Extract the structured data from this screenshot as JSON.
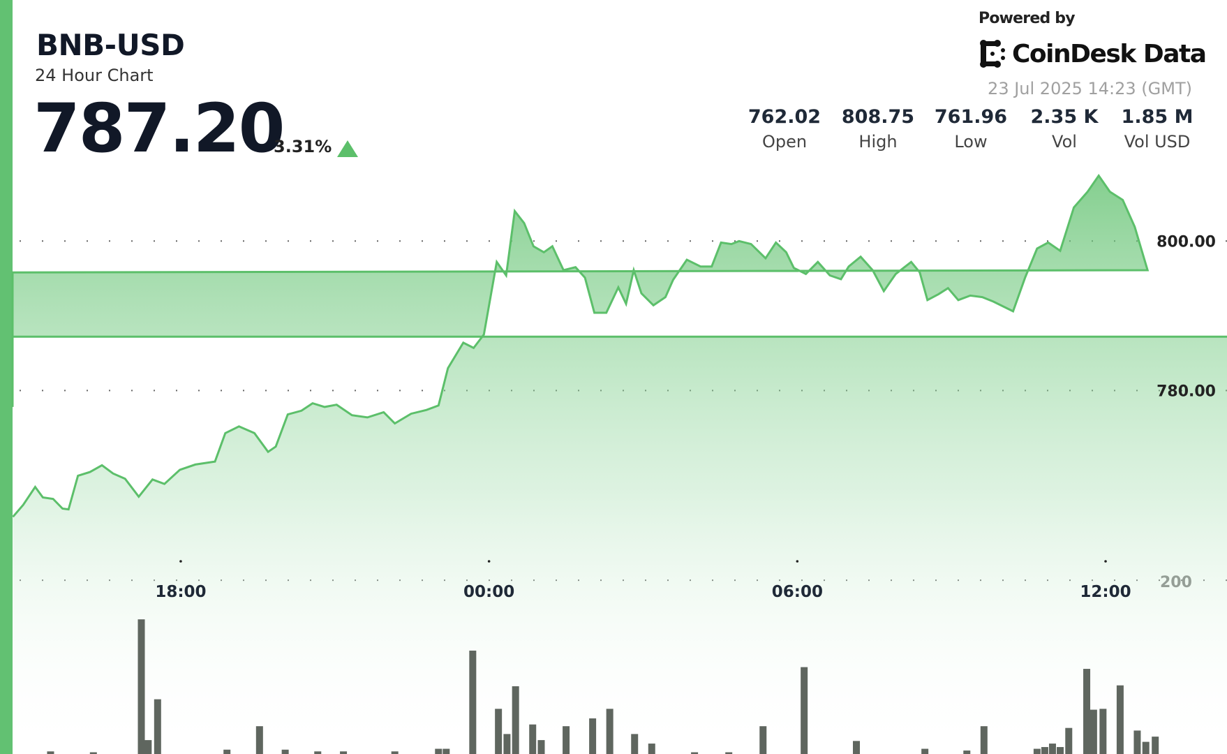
{
  "header": {
    "symbol": "BNB-USD",
    "subtitle": "24 Hour Chart",
    "price": "787.20",
    "change_percent": "3.31%",
    "change_direction": "up",
    "powered_by": "Powered by",
    "brand": "CoinDesk Data",
    "timestamp": "23 Jul 2025 14:23 (GMT)"
  },
  "stats": [
    {
      "value": "762.02",
      "label": "Open"
    },
    {
      "value": "808.75",
      "label": "High"
    },
    {
      "value": "761.96",
      "label": "Low"
    },
    {
      "value": "2.35 K",
      "label": "Vol"
    },
    {
      "value": "1.85 M",
      "label": "Vol USD"
    }
  ],
  "colors": {
    "accent": "#62c172",
    "line": "#5cbf6a",
    "volume_bar": "#5f665f",
    "text": "#111827"
  },
  "chart_data": [
    {
      "type": "area",
      "title": "",
      "y_ticks": [
        "800.00",
        "780.00"
      ],
      "y_tick_values": [
        800,
        780
      ],
      "x_ticks": [
        "18:00",
        "00:00",
        "06:00",
        "12:00"
      ],
      "grid": "dotted horizontal",
      "series": [
        {
          "points": [
            [
              "14:44",
              763.1
            ],
            [
              "14:56",
              764.7
            ],
            [
              "15:10",
              767.1
            ],
            [
              "15:19",
              765.7
            ],
            [
              "15:31",
              765.5
            ],
            [
              "15:42",
              764.2
            ],
            [
              "15:49",
              764.1
            ],
            [
              "16:00",
              768.6
            ],
            [
              "16:14",
              769.1
            ],
            [
              "16:28",
              770.0
            ],
            [
              "16:41",
              768.9
            ],
            [
              "16:55",
              768.2
            ],
            [
              "17:11",
              765.8
            ],
            [
              "17:27",
              768.1
            ],
            [
              "17:41",
              767.5
            ],
            [
              "17:59",
              769.4
            ],
            [
              "18:17",
              770.1
            ],
            [
              "18:40",
              770.5
            ],
            [
              "18:52",
              774.3
            ],
            [
              "19:08",
              775.2
            ],
            [
              "19:26",
              774.3
            ],
            [
              "19:42",
              771.8
            ],
            [
              "19:51",
              772.5
            ],
            [
              "20:05",
              776.8
            ],
            [
              "20:21",
              777.3
            ],
            [
              "20:34",
              778.3
            ],
            [
              "20:48",
              777.8
            ],
            [
              "21:02",
              778.1
            ],
            [
              "21:20",
              776.7
            ],
            [
              "21:38",
              776.4
            ],
            [
              "21:57",
              777.1
            ],
            [
              "22:10",
              775.6
            ],
            [
              "22:29",
              776.9
            ],
            [
              "22:47",
              777.4
            ],
            [
              "23:01",
              778.0
            ],
            [
              "23:12",
              783.0
            ],
            [
              "23:30",
              786.4
            ],
            [
              "23:42",
              785.7
            ],
            [
              "23:54",
              787.5
            ],
            [
              "00:09",
              797.2
            ],
            [
              "00:20",
              795.4
            ],
            [
              "00:30",
              804.0
            ],
            [
              "00:41",
              802.4
            ],
            [
              "00:52",
              799.3
            ],
            [
              "01:04",
              798.5
            ],
            [
              "01:14",
              799.3
            ],
            [
              "01:27",
              796.1
            ],
            [
              "01:41",
              796.5
            ],
            [
              "01:52",
              795.1
            ],
            [
              "02:03",
              790.4
            ],
            [
              "02:17",
              790.4
            ],
            [
              "02:31",
              793.8
            ],
            [
              "02:40",
              791.6
            ],
            [
              "02:49",
              796.1
            ],
            [
              "02:58",
              793.0
            ],
            [
              "03:12",
              791.4
            ],
            [
              "03:26",
              792.5
            ],
            [
              "03:35",
              794.8
            ],
            [
              "03:51",
              797.5
            ],
            [
              "04:07",
              796.6
            ],
            [
              "04:20",
              796.6
            ],
            [
              "04:31",
              799.8
            ],
            [
              "04:43",
              799.6
            ],
            [
              "04:52",
              800.0
            ],
            [
              "05:06",
              799.6
            ],
            [
              "05:23",
              797.7
            ],
            [
              "05:35",
              799.8
            ],
            [
              "05:47",
              798.5
            ],
            [
              "05:56",
              796.4
            ],
            [
              "06:10",
              795.6
            ],
            [
              "06:24",
              797.2
            ],
            [
              "06:38",
              795.4
            ],
            [
              "06:51",
              794.9
            ],
            [
              "07:00",
              796.6
            ],
            [
              "07:14",
              797.9
            ],
            [
              "07:28",
              796.1
            ],
            [
              "07:41",
              793.3
            ],
            [
              "07:55",
              795.6
            ],
            [
              "08:13",
              797.2
            ],
            [
              "08:23",
              795.8
            ],
            [
              "08:32",
              792.1
            ],
            [
              "08:45",
              792.9
            ],
            [
              "08:56",
              793.7
            ],
            [
              "09:08",
              792.1
            ],
            [
              "09:22",
              792.7
            ],
            [
              "09:36",
              792.5
            ],
            [
              "09:49",
              791.9
            ],
            [
              "10:12",
              790.6
            ],
            [
              "10:26",
              795.1
            ],
            [
              "10:40",
              799.0
            ],
            [
              "10:53",
              799.8
            ],
            [
              "11:07",
              798.7
            ],
            [
              "11:23",
              804.5
            ],
            [
              "11:39",
              806.6
            ],
            [
              "11:52",
              808.75
            ],
            [
              "12:05",
              806.6
            ],
            [
              "12:20",
              805.5
            ],
            [
              "12:34",
              801.9
            ],
            [
              "12:49",
              796.1
            ],
            [
              "13:01",
              795.8
            ],
            [
              "13:12",
              786.2
            ],
            [
              "13:22",
              791.9
            ],
            [
              "13:42",
              777.8
            ],
            [
              "14:01",
              785.7
            ],
            [
              "14:13",
              787.2
            ],
            [
              "14:22",
              787.2
            ]
          ]
        }
      ]
    },
    {
      "type": "bar",
      "title": "",
      "y_ticks": [
        "200"
      ],
      "y_tick_values": [
        200
      ],
      "series": [
        {
          "points": [
            [
              "15:28",
              3
            ],
            [
              "16:18",
              2
            ],
            [
              "17:14",
              155
            ],
            [
              "17:22",
              16
            ],
            [
              "17:33",
              63
            ],
            [
              "18:54",
              5
            ],
            [
              "19:32",
              32
            ],
            [
              "20:02",
              5
            ],
            [
              "20:40",
              3
            ],
            [
              "21:10",
              3
            ],
            [
              "22:10",
              3
            ],
            [
              "23:01",
              6
            ],
            [
              "23:10",
              6
            ],
            [
              "23:41",
              119
            ],
            [
              "00:11",
              52
            ],
            [
              "00:21",
              23
            ],
            [
              "00:31",
              78
            ],
            [
              "00:51",
              34
            ],
            [
              "01:01",
              16
            ],
            [
              "01:30",
              32
            ],
            [
              "02:01",
              41
            ],
            [
              "02:21",
              52
            ],
            [
              "02:50",
              23
            ],
            [
              "03:10",
              12
            ],
            [
              "04:00",
              2
            ],
            [
              "04:40",
              2
            ],
            [
              "05:20",
              32
            ],
            [
              "06:08",
              100
            ],
            [
              "07:09",
              15
            ],
            [
              "08:29",
              6
            ],
            [
              "09:18",
              4
            ],
            [
              "09:38",
              32
            ],
            [
              "10:40",
              6
            ],
            [
              "10:49",
              8
            ],
            [
              "10:58",
              12
            ],
            [
              "11:07",
              8
            ],
            [
              "11:17",
              30
            ],
            [
              "11:38",
              98
            ],
            [
              "11:46",
              51
            ],
            [
              "11:57",
              52
            ],
            [
              "12:17",
              79
            ],
            [
              "12:37",
              27
            ],
            [
              "12:47",
              14
            ],
            [
              "12:58",
              20
            ],
            [
              "13:08",
              14
            ],
            [
              "13:18",
              20
            ],
            [
              "13:37",
              339
            ],
            [
              "13:47",
              43
            ],
            [
              "13:56",
              39
            ],
            [
              "14:06",
              362
            ]
          ]
        }
      ]
    }
  ]
}
